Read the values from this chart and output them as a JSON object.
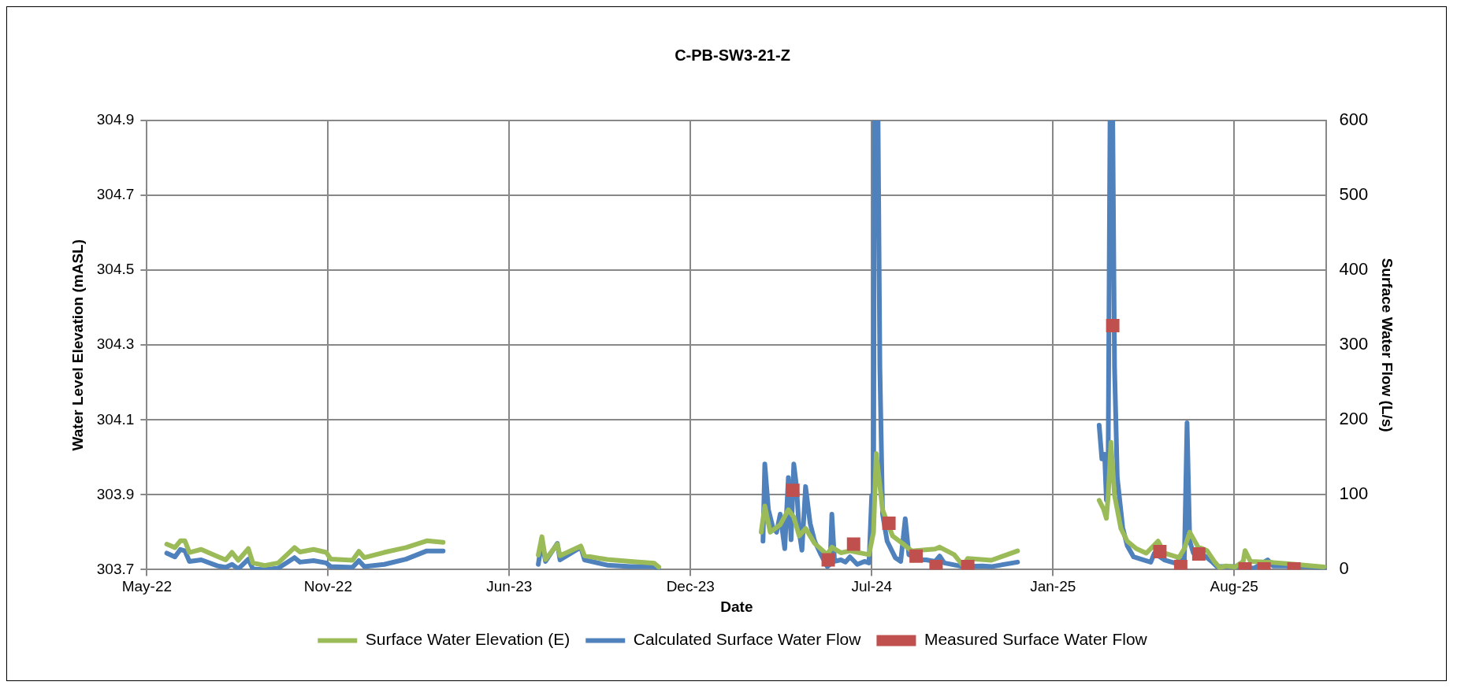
{
  "chart_data": {
    "type": "line",
    "title": "C-PB-SW3-21-Z",
    "xlabel": "Date",
    "ylabel": "Water Level Elevation (mASL)",
    "y2label": "Surface Water Flow (L/s)",
    "xlim": [
      "2022-05-01",
      "2025-11-23"
    ],
    "xticks": [
      {
        "value": "2022-05-01",
        "label": "May-22"
      },
      {
        "value": "2022-11-17",
        "label": "Nov-22"
      },
      {
        "value": "2023-06-05",
        "label": "Jun-23"
      },
      {
        "value": "2023-12-22",
        "label": "Dec-23"
      },
      {
        "value": "2024-07-09",
        "label": "Jul-24"
      },
      {
        "value": "2025-01-25",
        "label": "Jan-25"
      },
      {
        "value": "2025-08-13",
        "label": "Aug-25"
      }
    ],
    "ylim": [
      303.7,
      304.9
    ],
    "yticks": [
      303.7,
      303.9,
      304.1,
      304.3,
      304.5,
      304.7,
      304.9
    ],
    "y2lim": [
      0,
      600
    ],
    "y2ticks": [
      0,
      100,
      200,
      300,
      400,
      500,
      600
    ],
    "grid": true,
    "legend": "bottom",
    "series": [
      {
        "name": "Surface Water Elevation (E)",
        "color": "#9bbb59",
        "marker": "none",
        "x": [
          "2022-05-23",
          "2022-06-01",
          "2022-06-07",
          "2022-06-12",
          "2022-06-17",
          "2022-06-30",
          "2022-07-18",
          "2022-07-27",
          "2022-08-03",
          "2022-08-10",
          "2022-08-21",
          "2022-08-26",
          "2022-09-08",
          "2022-09-23",
          "2022-10-11",
          "2022-10-17",
          "2022-11-01",
          "2022-11-15",
          "2022-11-20",
          "2022-12-14",
          "2022-12-21",
          "2022-12-27",
          "2023-01-18",
          "2023-02-11",
          "2023-03-06",
          "2023-03-24",
          "2023-05-01",
          "2023-07-07",
          "2023-07-11",
          "2023-07-15",
          "2023-07-28",
          "2023-07-31",
          "2023-08-23",
          "2023-08-27",
          "2023-09-21",
          "2023-10-17",
          "2023-11-12",
          "2023-11-17",
          "2024-01-15",
          "2024-03-09",
          "2024-03-13",
          "2024-03-19",
          "2024-03-30",
          "2024-04-08",
          "2024-04-14",
          "2024-04-20",
          "2024-04-27",
          "2024-05-07",
          "2024-05-21",
          "2024-05-26",
          "2024-06-05",
          "2024-06-15",
          "2024-07-06",
          "2024-07-11",
          "2024-07-14",
          "2024-07-21",
          "2024-08-01",
          "2024-08-12",
          "2024-08-22",
          "2024-09-17",
          "2024-09-22",
          "2024-10-08",
          "2024-10-18",
          "2024-10-23",
          "2024-11-18",
          "2024-12-17",
          "2025-02-01",
          "2025-03-17",
          "2025-03-22",
          "2025-03-25",
          "2025-03-27",
          "2025-03-30",
          "2025-04-03",
          "2025-04-10",
          "2025-04-17",
          "2025-04-27",
          "2025-05-08",
          "2025-05-21",
          "2025-05-28",
          "2025-06-13",
          "2025-06-19",
          "2025-06-25",
          "2025-07-04",
          "2025-07-14",
          "2025-07-22",
          "2025-07-28",
          "2025-08-04",
          "2025-08-14",
          "2025-08-23",
          "2025-08-25",
          "2025-08-31",
          "2025-09-25",
          "2025-10-15",
          "2025-11-20"
        ],
        "values": [
          303.768,
          303.759,
          303.777,
          303.777,
          303.746,
          303.754,
          303.735,
          303.726,
          303.746,
          303.725,
          303.756,
          303.718,
          303.711,
          303.718,
          303.759,
          303.747,
          303.754,
          303.746,
          303.728,
          303.725,
          303.749,
          303.732,
          303.746,
          303.759,
          303.777,
          303.773,
          null,
          303.739,
          303.788,
          303.727,
          303.768,
          303.737,
          303.763,
          303.737,
          303.727,
          303.722,
          303.717,
          303.707,
          null,
          303.8,
          303.87,
          303.8,
          303.82,
          303.86,
          303.84,
          303.79,
          303.81,
          303.77,
          303.74,
          303.76,
          303.745,
          303.75,
          303.74,
          303.8,
          304.01,
          303.86,
          303.79,
          303.77,
          303.75,
          303.755,
          303.76,
          303.74,
          303.71,
          303.73,
          303.725,
          303.75,
          null,
          303.885,
          303.861,
          303.837,
          303.898,
          304.04,
          303.898,
          303.81,
          303.776,
          303.756,
          303.744,
          303.776,
          303.744,
          303.732,
          303.756,
          303.8,
          303.761,
          303.751,
          303.722,
          303.705,
          303.71,
          303.707,
          303.722,
          303.751,
          303.722,
          303.719,
          303.715,
          303.707
        ]
      },
      {
        "name": "Calculated Surface Water Flow",
        "axis": "y2",
        "color": "#4f81bd",
        "marker": "none",
        "x": [
          "2022-05-23",
          "2022-06-01",
          "2022-06-07",
          "2022-06-12",
          "2022-06-17",
          "2022-06-30",
          "2022-07-18",
          "2022-07-27",
          "2022-08-03",
          "2022-08-10",
          "2022-08-21",
          "2022-08-26",
          "2022-09-08",
          "2022-09-23",
          "2022-10-11",
          "2022-10-17",
          "2022-11-01",
          "2022-11-15",
          "2022-11-20",
          "2022-12-14",
          "2022-12-21",
          "2022-12-27",
          "2023-01-18",
          "2023-02-11",
          "2023-03-06",
          "2023-03-24",
          "2023-05-01",
          "2023-07-07",
          "2023-07-11",
          "2023-07-15",
          "2023-07-28",
          "2023-07-31",
          "2023-08-23",
          "2023-08-27",
          "2023-09-21",
          "2023-10-17",
          "2023-11-12",
          "2023-11-17",
          "2024-01-15",
          "2024-03-11",
          "2024-03-13",
          "2024-03-17",
          "2024-03-22",
          "2024-03-26",
          "2024-03-30",
          "2024-04-04",
          "2024-04-08",
          "2024-04-11",
          "2024-04-14",
          "2024-04-17",
          "2024-04-20",
          "2024-04-23",
          "2024-04-27",
          "2024-05-02",
          "2024-05-07",
          "2024-05-14",
          "2024-05-21",
          "2024-05-24",
          "2024-05-26",
          "2024-05-29",
          "2024-06-05",
          "2024-06-10",
          "2024-06-15",
          "2024-06-23",
          "2024-07-01",
          "2024-07-06",
          "2024-07-09",
          "2024-07-11",
          "2024-07-12",
          "2024-07-14",
          "2024-07-16",
          "2024-07-18",
          "2024-07-21",
          "2024-07-26",
          "2024-08-04",
          "2024-08-10",
          "2024-08-15",
          "2024-08-19",
          "2024-09-02",
          "2024-09-07",
          "2024-09-17",
          "2024-09-22",
          "2024-09-27",
          "2024-10-18",
          "2024-11-08",
          "2024-11-18",
          "2024-12-17",
          "2025-02-01",
          "2025-03-17",
          "2025-03-20",
          "2025-03-23",
          "2025-03-25",
          "2025-03-27",
          "2025-03-29",
          "2025-04-01",
          "2025-04-03",
          "2025-04-06",
          "2025-04-12",
          "2025-04-17",
          "2025-04-24",
          "2025-05-05",
          "2025-05-13",
          "2025-05-17",
          "2025-05-28",
          "2025-06-08",
          "2025-06-15",
          "2025-06-19",
          "2025-06-22",
          "2025-06-25",
          "2025-06-29",
          "2025-07-12",
          "2025-07-19",
          "2025-07-25",
          "2025-08-04",
          "2025-08-14",
          "2025-09-04",
          "2025-09-19",
          "2025-09-25",
          "2025-10-08",
          "2025-11-04",
          "2025-11-20"
        ],
        "values": [
          22,
          17,
          27,
          25,
          11,
          13,
          5,
          3,
          7,
          1,
          14,
          1,
          0,
          2,
          16,
          10,
          12,
          9,
          4,
          3,
          12,
          4,
          7,
          14,
          25,
          25,
          null,
          7,
          38,
          11,
          35,
          13,
          30,
          13,
          6,
          4,
          4,
          0,
          null,
          38,
          141,
          80,
          56,
          50,
          74,
          28,
          123,
          40,
          141,
          111,
          50,
          26,
          111,
          62,
          38,
          20,
          4,
          7,
          74,
          11,
          13,
          10,
          17,
          7,
          11,
          9,
          99,
          74,
          600,
          600,
          600,
          270,
          74,
          38,
          16,
          11,
          68,
          20,
          13,
          13,
          11,
          18,
          9,
          4,
          5,
          4,
          10,
          null,
          193,
          148,
          154,
          93,
          160,
          600,
          600,
          270,
          123,
          56,
          32,
          17,
          13,
          10,
          22,
          13,
          9,
          13,
          11,
          196,
          38,
          22,
          18,
          11,
          4,
          4,
          4,
          2,
          13,
          5,
          5,
          4,
          2
        ]
      },
      {
        "name": "Measured Surface Water Flow",
        "type": "scatter",
        "axis": "y2",
        "color": "#c0504d",
        "marker": "square",
        "x": [
          "2024-04-13",
          "2024-05-22",
          "2024-06-19",
          "2024-07-28",
          "2024-08-27",
          "2024-09-18",
          "2024-10-23",
          "2025-04-01",
          "2025-05-23",
          "2025-06-15",
          "2025-07-05",
          "2025-08-25",
          "2025-09-15",
          "2025-10-18"
        ],
        "values": [
          106,
          13,
          34,
          62,
          18,
          4,
          4,
          326,
          24,
          4,
          21,
          1,
          1,
          1
        ]
      }
    ]
  }
}
